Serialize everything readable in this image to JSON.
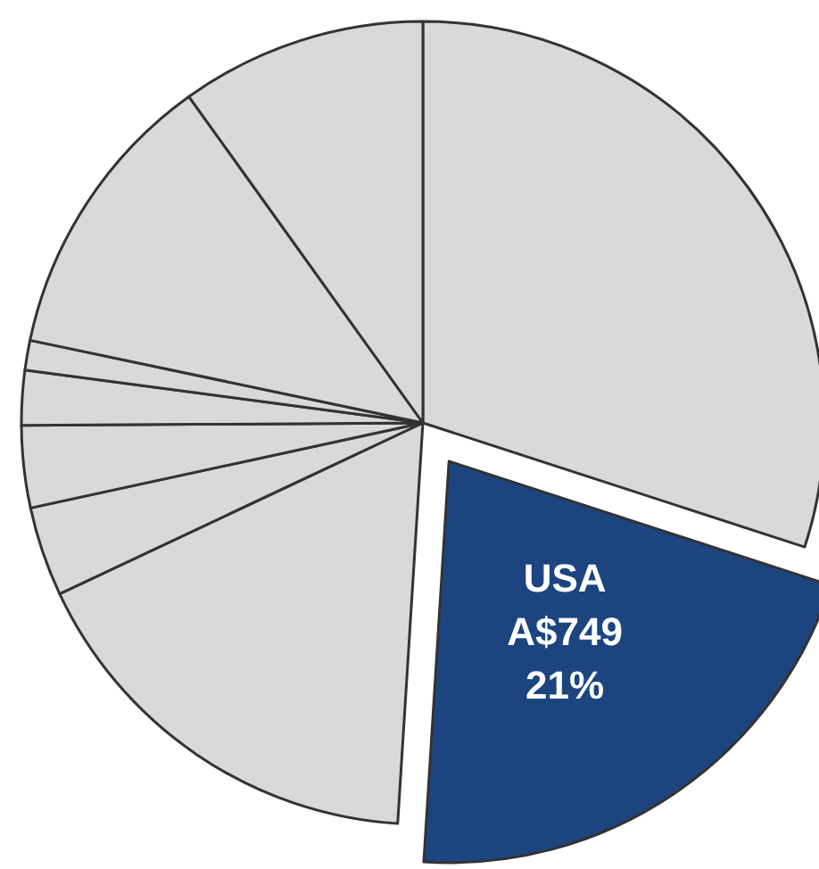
{
  "chart_data": {
    "type": "pie",
    "categories": [
      null,
      "USA",
      null,
      null,
      null,
      null,
      null,
      null,
      null
    ],
    "values": [
      30,
      21,
      17,
      3.6,
      3.3,
      2.2,
      1.2,
      11.8,
      9.9
    ],
    "colors": [
      "#d9d9d9",
      "#1c4580",
      "#d9d9d9",
      "#d9d9d9",
      "#d9d9d9",
      "#d9d9d9",
      "#d9d9d9",
      "#d9d9d9",
      "#d9d9d9"
    ],
    "value_labels": [
      null,
      "A$749\n21%",
      null,
      null,
      null,
      null,
      null,
      null,
      null
    ]
  }
}
